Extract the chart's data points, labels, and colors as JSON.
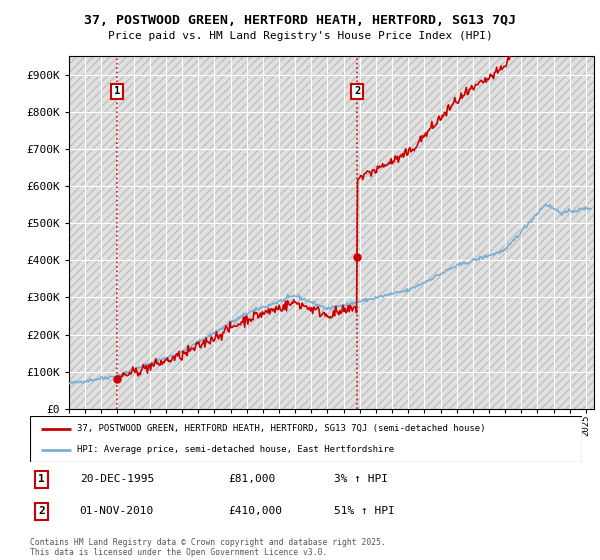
{
  "title_line1": "37, POSTWOOD GREEN, HERTFORD HEATH, HERTFORD, SG13 7QJ",
  "title_line2": "Price paid vs. HM Land Registry's House Price Index (HPI)",
  "background_color": "#ffffff",
  "plot_bg_color": "#e8e8e8",
  "grid_color": "#ffffff",
  "red_color": "#cc0000",
  "blue_color": "#7aafd4",
  "purchase1_year": 1995.97,
  "purchase1_price": 81000,
  "purchase1_label": "1",
  "purchase2_year": 2010.83,
  "purchase2_price": 410000,
  "purchase2_label": "2",
  "legend_entry1": "37, POSTWOOD GREEN, HERTFORD HEATH, HERTFORD, SG13 7QJ (semi-detached house)",
  "legend_entry2": "HPI: Average price, semi-detached house, East Hertfordshire",
  "annotation1_date": "20-DEC-1995",
  "annotation1_price": "£81,000",
  "annotation1_hpi": "3% ↑ HPI",
  "annotation2_date": "01-NOV-2010",
  "annotation2_price": "£410,000",
  "annotation2_hpi": "51% ↑ HPI",
  "footer": "Contains HM Land Registry data © Crown copyright and database right 2025.\nThis data is licensed under the Open Government Licence v3.0.",
  "ylim_min": 0,
  "ylim_max": 950000,
  "xmin": 1993,
  "xmax": 2025.5
}
